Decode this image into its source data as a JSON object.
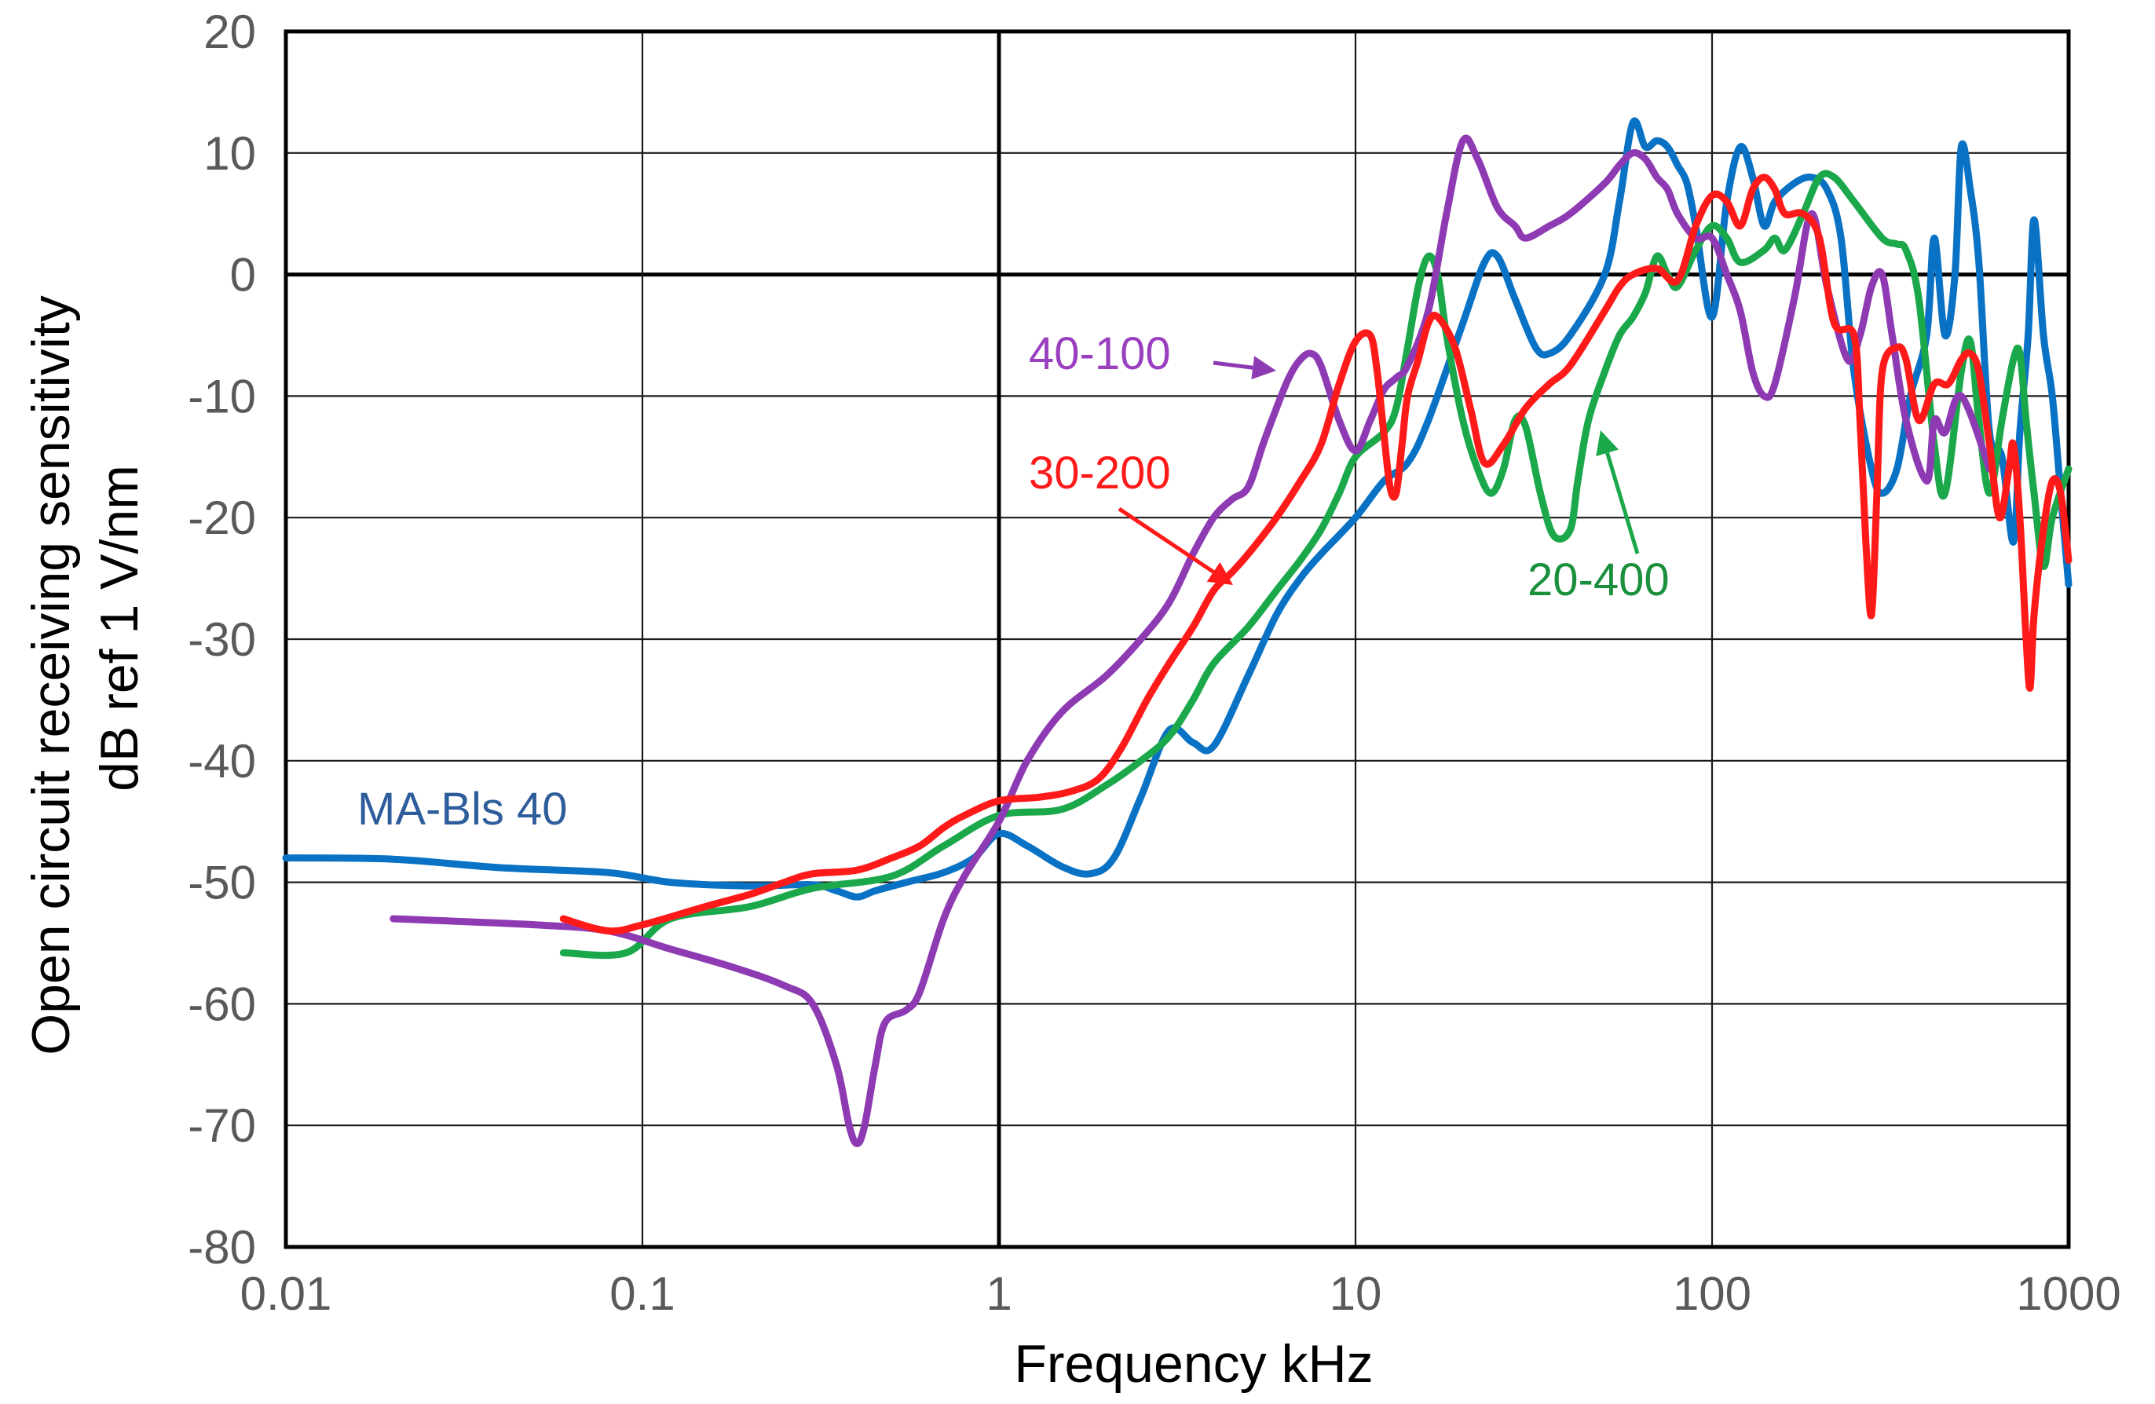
{
  "chart_data": {
    "type": "line",
    "title": "",
    "xlabel": "Frequency  kHz",
    "ylabel": "Open circuit receiving sensitivity",
    "ylabel2": "dB ref 1 V/nm",
    "xscale": "log",
    "xlim": [
      0.01,
      1000
    ],
    "ylim": [
      -80,
      20
    ],
    "grid": true,
    "x_ticks": [
      0.01,
      0.1,
      1,
      10,
      100,
      1000
    ],
    "x_tick_labels": [
      "0.01",
      "0.1",
      "1",
      "10",
      "100",
      "1000"
    ],
    "y_ticks": [
      20,
      10,
      0,
      -10,
      -20,
      -30,
      -40,
      -50,
      -60,
      -70,
      -80
    ],
    "y_tick_labels": [
      "20",
      "10",
      "0",
      "-10",
      "-20",
      "-30",
      "-40",
      "-50",
      "-60",
      "-70",
      "-80"
    ],
    "series": [
      {
        "name": "MA-Bls 40",
        "color": "#0a72c4",
        "points": [
          [
            0.01,
            -48
          ],
          [
            0.02,
            -48.1
          ],
          [
            0.04,
            -48.8
          ],
          [
            0.08,
            -49.2
          ],
          [
            0.12,
            -50
          ],
          [
            0.2,
            -50.3
          ],
          [
            0.3,
            -50.2
          ],
          [
            0.35,
            -50.7
          ],
          [
            0.4,
            -51.2
          ],
          [
            0.45,
            -50.7
          ],
          [
            0.55,
            -50
          ],
          [
            0.7,
            -49.2
          ],
          [
            0.85,
            -48
          ],
          [
            1,
            -46
          ],
          [
            1.2,
            -47
          ],
          [
            1.5,
            -48.7
          ],
          [
            1.8,
            -49.3
          ],
          [
            2.1,
            -48
          ],
          [
            2.5,
            -43
          ],
          [
            3,
            -37.5
          ],
          [
            3.5,
            -38.5
          ],
          [
            4,
            -38.8
          ],
          [
            5,
            -33
          ],
          [
            6,
            -28
          ],
          [
            7,
            -25
          ],
          [
            8,
            -23
          ],
          [
            10,
            -20
          ],
          [
            12,
            -17
          ],
          [
            14,
            -15.5
          ],
          [
            16,
            -12
          ],
          [
            20,
            -4
          ],
          [
            23,
            1
          ],
          [
            25,
            1.5
          ],
          [
            28,
            -2
          ],
          [
            32,
            -6
          ],
          [
            35,
            -6.5
          ],
          [
            40,
            -5
          ],
          [
            50,
            0
          ],
          [
            55,
            6
          ],
          [
            60,
            12.5
          ],
          [
            65,
            10.5
          ],
          [
            70,
            11
          ],
          [
            75,
            10.5
          ],
          [
            80,
            9
          ],
          [
            85,
            7.5
          ],
          [
            90,
            4
          ],
          [
            100,
            -3.5
          ],
          [
            110,
            6
          ],
          [
            120,
            10.5
          ],
          [
            130,
            8
          ],
          [
            140,
            4
          ],
          [
            150,
            6
          ],
          [
            170,
            7.5
          ],
          [
            190,
            8
          ],
          [
            210,
            7
          ],
          [
            230,
            3
          ],
          [
            250,
            -8
          ],
          [
            280,
            -16
          ],
          [
            300,
            -18
          ],
          [
            330,
            -16
          ],
          [
            360,
            -10
          ],
          [
            400,
            -5
          ],
          [
            420,
            3
          ],
          [
            450,
            -5
          ],
          [
            480,
            0
          ],
          [
            500,
            10.5
          ],
          [
            530,
            7
          ],
          [
            560,
            1
          ],
          [
            600,
            -13
          ],
          [
            650,
            -15
          ],
          [
            700,
            -22
          ],
          [
            730,
            -13
          ],
          [
            770,
            -5
          ],
          [
            800,
            4.5
          ],
          [
            850,
            -5
          ],
          [
            900,
            -10
          ],
          [
            950,
            -18
          ],
          [
            1000,
            -25.5
          ]
        ]
      },
      {
        "name": "40-100",
        "color": "#8e3bb3",
        "points": [
          [
            0.02,
            -53
          ],
          [
            0.05,
            -53.5
          ],
          [
            0.08,
            -54
          ],
          [
            0.12,
            -55.5
          ],
          [
            0.18,
            -57
          ],
          [
            0.25,
            -58.5
          ],
          [
            0.3,
            -60
          ],
          [
            0.35,
            -65
          ],
          [
            0.38,
            -70
          ],
          [
            0.4,
            -71.5
          ],
          [
            0.42,
            -70
          ],
          [
            0.45,
            -65
          ],
          [
            0.48,
            -61.5
          ],
          [
            0.55,
            -60.5
          ],
          [
            0.6,
            -59
          ],
          [
            0.7,
            -53
          ],
          [
            0.8,
            -49.5
          ],
          [
            1,
            -45
          ],
          [
            1.2,
            -40
          ],
          [
            1.5,
            -36
          ],
          [
            2,
            -33
          ],
          [
            2.5,
            -30
          ],
          [
            3,
            -27
          ],
          [
            3.5,
            -23
          ],
          [
            4,
            -20
          ],
          [
            4.5,
            -18.5
          ],
          [
            5,
            -17.5
          ],
          [
            5.5,
            -14
          ],
          [
            6,
            -11
          ],
          [
            6.5,
            -8.5
          ],
          [
            7,
            -7
          ],
          [
            7.5,
            -6.5
          ],
          [
            8,
            -7.5
          ],
          [
            9,
            -12
          ],
          [
            10,
            -14.5
          ],
          [
            11,
            -12
          ],
          [
            12,
            -9.5
          ],
          [
            13,
            -8.5
          ],
          [
            14,
            -7.5
          ],
          [
            16,
            -3
          ],
          [
            18,
            5
          ],
          [
            20,
            11
          ],
          [
            22,
            9.5
          ],
          [
            25,
            5.5
          ],
          [
            28,
            4
          ],
          [
            30,
            3
          ],
          [
            35,
            4
          ],
          [
            40,
            5
          ],
          [
            50,
            7.5
          ],
          [
            55,
            9
          ],
          [
            60,
            10
          ],
          [
            65,
            9.5
          ],
          [
            70,
            8
          ],
          [
            75,
            7
          ],
          [
            80,
            5
          ],
          [
            90,
            3
          ],
          [
            100,
            3
          ],
          [
            110,
            0
          ],
          [
            120,
            -3
          ],
          [
            130,
            -8
          ],
          [
            140,
            -10
          ],
          [
            150,
            -9
          ],
          [
            170,
            -2
          ],
          [
            190,
            5
          ],
          [
            210,
            -1
          ],
          [
            240,
            -7
          ],
          [
            260,
            -5
          ],
          [
            280,
            -1
          ],
          [
            300,
            0
          ],
          [
            320,
            -5
          ],
          [
            350,
            -12
          ],
          [
            400,
            -17
          ],
          [
            420,
            -12
          ],
          [
            450,
            -13
          ],
          [
            500,
            -10
          ],
          [
            600,
            -16
          ]
        ]
      },
      {
        "name": "30-200",
        "color": "#ff1a1a",
        "points": [
          [
            0.06,
            -53
          ],
          [
            0.08,
            -54
          ],
          [
            0.1,
            -53.5
          ],
          [
            0.15,
            -52
          ],
          [
            0.2,
            -51
          ],
          [
            0.25,
            -50
          ],
          [
            0.3,
            -49.3
          ],
          [
            0.4,
            -49
          ],
          [
            0.5,
            -48
          ],
          [
            0.6,
            -47
          ],
          [
            0.7,
            -45.5
          ],
          [
            0.8,
            -44.5
          ],
          [
            1,
            -43.3
          ],
          [
            1.3,
            -43
          ],
          [
            1.6,
            -42.5
          ],
          [
            1.9,
            -41.5
          ],
          [
            2.2,
            -39
          ],
          [
            2.6,
            -35
          ],
          [
            3,
            -32
          ],
          [
            3.5,
            -29
          ],
          [
            4,
            -26
          ],
          [
            4.5,
            -24.5
          ],
          [
            5,
            -23
          ],
          [
            6,
            -20
          ],
          [
            7,
            -17
          ],
          [
            8,
            -14
          ],
          [
            9,
            -9
          ],
          [
            10,
            -5.5
          ],
          [
            11,
            -5
          ],
          [
            11.5,
            -8
          ],
          [
            12,
            -13
          ],
          [
            12.5,
            -17.5
          ],
          [
            13,
            -18
          ],
          [
            13.5,
            -14
          ],
          [
            14,
            -10
          ],
          [
            15,
            -7
          ],
          [
            16,
            -4
          ],
          [
            17,
            -3.5
          ],
          [
            19,
            -6
          ],
          [
            21,
            -11
          ],
          [
            23,
            -15.5
          ],
          [
            26,
            -14
          ],
          [
            30,
            -11
          ],
          [
            35,
            -9
          ],
          [
            40,
            -7.5
          ],
          [
            50,
            -3
          ],
          [
            55,
            -1
          ],
          [
            60,
            0
          ],
          [
            70,
            0.5
          ],
          [
            80,
            -0.5
          ],
          [
            90,
            4
          ],
          [
            100,
            6.5
          ],
          [
            110,
            6
          ],
          [
            120,
            4
          ],
          [
            130,
            7
          ],
          [
            140,
            8
          ],
          [
            150,
            7
          ],
          [
            160,
            5
          ],
          [
            180,
            5
          ],
          [
            200,
            3
          ],
          [
            220,
            -4
          ],
          [
            250,
            -5
          ],
          [
            260,
            -12
          ],
          [
            270,
            -22
          ],
          [
            280,
            -28
          ],
          [
            290,
            -18
          ],
          [
            300,
            -8
          ],
          [
            330,
            -6
          ],
          [
            350,
            -7
          ],
          [
            380,
            -12
          ],
          [
            420,
            -9
          ],
          [
            460,
            -9
          ],
          [
            500,
            -7
          ],
          [
            530,
            -6.5
          ],
          [
            560,
            -8
          ],
          [
            600,
            -14
          ],
          [
            640,
            -20
          ],
          [
            680,
            -16
          ],
          [
            700,
            -14
          ],
          [
            730,
            -20
          ],
          [
            760,
            -30
          ],
          [
            780,
            -34
          ],
          [
            800,
            -28
          ],
          [
            850,
            -21
          ],
          [
            900,
            -17
          ],
          [
            950,
            -18
          ],
          [
            1000,
            -23.5
          ]
        ]
      },
      {
        "name": "20-400",
        "color": "#1aa84b",
        "points": [
          [
            0.06,
            -55.8
          ],
          [
            0.09,
            -55.8
          ],
          [
            0.12,
            -53
          ],
          [
            0.2,
            -52
          ],
          [
            0.3,
            -50.5
          ],
          [
            0.5,
            -49.5
          ],
          [
            0.7,
            -47
          ],
          [
            1,
            -44.5
          ],
          [
            1.5,
            -44
          ],
          [
            2,
            -42
          ],
          [
            2.5,
            -40
          ],
          [
            3,
            -38
          ],
          [
            3.5,
            -35
          ],
          [
            4,
            -32
          ],
          [
            5,
            -29
          ],
          [
            6,
            -26
          ],
          [
            7,
            -23.5
          ],
          [
            8,
            -21
          ],
          [
            9,
            -18
          ],
          [
            10,
            -15
          ],
          [
            12,
            -13
          ],
          [
            13,
            -11
          ],
          [
            14,
            -6
          ],
          [
            15,
            -1
          ],
          [
            16,
            1.5
          ],
          [
            17,
            0
          ],
          [
            18,
            -5
          ],
          [
            20,
            -12
          ],
          [
            22,
            -16
          ],
          [
            24,
            -18
          ],
          [
            26,
            -16
          ],
          [
            28,
            -12
          ],
          [
            30,
            -12.5
          ],
          [
            33,
            -18
          ],
          [
            36,
            -21.5
          ],
          [
            40,
            -21
          ],
          [
            42,
            -17
          ],
          [
            45,
            -12
          ],
          [
            50,
            -8
          ],
          [
            55,
            -5
          ],
          [
            60,
            -3.5
          ],
          [
            65,
            -1.5
          ],
          [
            70,
            1.5
          ],
          [
            75,
            0
          ],
          [
            80,
            -1
          ],
          [
            90,
            2
          ],
          [
            100,
            4
          ],
          [
            110,
            3
          ],
          [
            120,
            1
          ],
          [
            140,
            2
          ],
          [
            150,
            3
          ],
          [
            160,
            2
          ],
          [
            180,
            5
          ],
          [
            200,
            8
          ],
          [
            220,
            8
          ],
          [
            250,
            6
          ],
          [
            300,
            3
          ],
          [
            330,
            2.5
          ],
          [
            350,
            2
          ],
          [
            380,
            -2
          ],
          [
            420,
            -14
          ],
          [
            450,
            -18
          ],
          [
            500,
            -8
          ],
          [
            530,
            -5.5
          ],
          [
            560,
            -12
          ],
          [
            600,
            -18
          ],
          [
            650,
            -12
          ],
          [
            700,
            -7
          ],
          [
            730,
            -6.5
          ],
          [
            760,
            -12
          ],
          [
            800,
            -18
          ],
          [
            850,
            -24
          ],
          [
            900,
            -20
          ],
          [
            1000,
            -16
          ]
        ]
      }
    ],
    "annotations": [
      {
        "text": "MA-Bls 40",
        "color": "#2e5d9c",
        "series": "MA-Bls 40"
      },
      {
        "text": "40-100",
        "color": "#9a3fc0",
        "series": "40-100"
      },
      {
        "text": "30-200",
        "color": "#ff1a1a",
        "series": "30-200"
      },
      {
        "text": "20-400",
        "color": "#1a8f3c",
        "series": "20-400"
      }
    ]
  }
}
